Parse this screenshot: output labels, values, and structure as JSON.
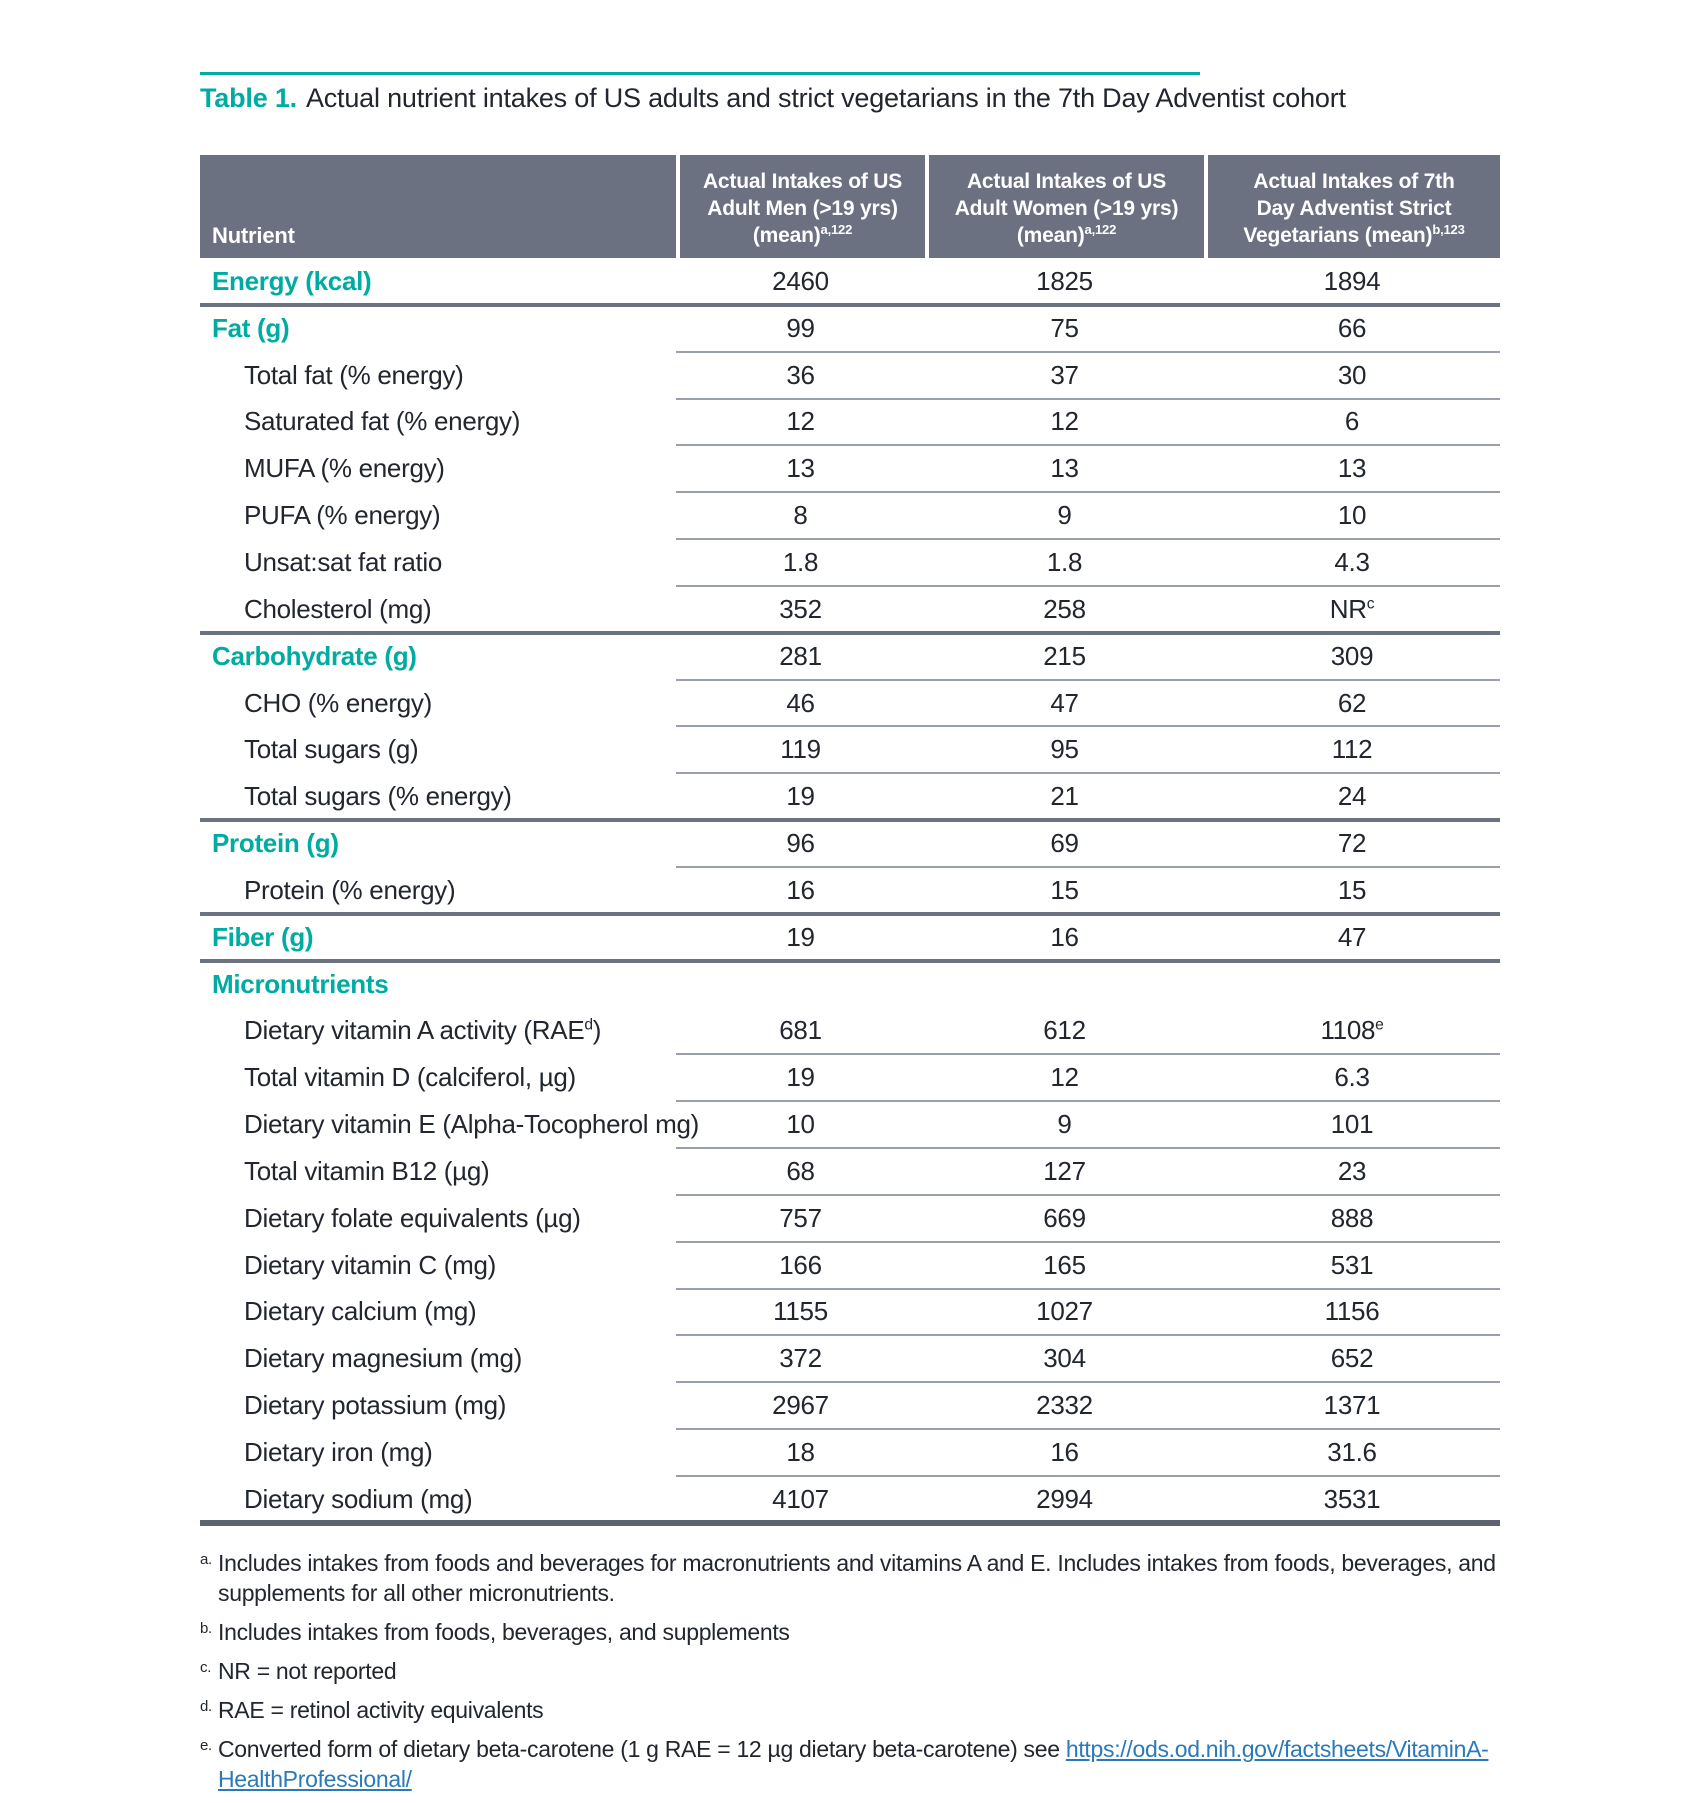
{
  "title": {
    "label": "Table 1.",
    "text": "Actual nutrient intakes of US adults and strict vegetarians in the 7th Day Adventist cohort"
  },
  "colors": {
    "accent_teal": "#00aca2",
    "header_bg": "#6b7180",
    "body_text": "#21262f",
    "link_blue": "#2a7ab9",
    "divider_light": "#99a0ac",
    "divider_dark": "#6b7280"
  },
  "table": {
    "header": [
      {
        "lines": [
          "Nutrient"
        ],
        "sup": ""
      },
      {
        "lines": [
          "Actual Intakes of US",
          "Adult Men (>19 yrs)",
          "(mean)"
        ],
        "sup": "a,122"
      },
      {
        "lines": [
          "Actual Intakes of US",
          "Adult Women (>19 yrs)",
          "(mean)"
        ],
        "sup": "a,122"
      },
      {
        "lines": [
          "Actual Intakes of 7th",
          "Day Adventist Strict",
          "Vegetarians (mean)"
        ],
        "sup": "b,123"
      }
    ],
    "rows": [
      {
        "type": "category",
        "label": "Energy (kcal)",
        "values": [
          {
            "v": "2460"
          },
          {
            "v": "1825"
          },
          {
            "v": "1894"
          }
        ],
        "divider": "full"
      },
      {
        "type": "category",
        "label": "Fat (g)",
        "values": [
          {
            "v": "99"
          },
          {
            "v": "75"
          },
          {
            "v": "66"
          }
        ],
        "divider": "partial"
      },
      {
        "type": "sub",
        "label": "Total fat (% energy)",
        "values": [
          {
            "v": "36"
          },
          {
            "v": "37"
          },
          {
            "v": "30"
          }
        ],
        "divider": "partial"
      },
      {
        "type": "sub",
        "label": "Saturated fat (% energy)",
        "values": [
          {
            "v": "12"
          },
          {
            "v": "12"
          },
          {
            "v": "6"
          }
        ],
        "divider": "partial"
      },
      {
        "type": "sub",
        "label": "MUFA (% energy)",
        "values": [
          {
            "v": "13"
          },
          {
            "v": "13"
          },
          {
            "v": "13"
          }
        ],
        "divider": "partial"
      },
      {
        "type": "sub",
        "label": "PUFA (% energy)",
        "values": [
          {
            "v": "8"
          },
          {
            "v": "9"
          },
          {
            "v": "10"
          }
        ],
        "divider": "partial"
      },
      {
        "type": "sub",
        "label": "Unsat:sat fat ratio",
        "values": [
          {
            "v": "1.8"
          },
          {
            "v": "1.8"
          },
          {
            "v": "4.3"
          }
        ],
        "divider": "partial"
      },
      {
        "type": "sub",
        "label": "Cholesterol (mg)",
        "values": [
          {
            "v": "352"
          },
          {
            "v": "258"
          },
          {
            "v": "NR",
            "sup": "c"
          }
        ],
        "divider": "full"
      },
      {
        "type": "category",
        "label": "Carbohydrate (g)",
        "values": [
          {
            "v": "281"
          },
          {
            "v": "215"
          },
          {
            "v": "309"
          }
        ],
        "divider": "partial"
      },
      {
        "type": "sub",
        "label": "CHO (% energy)",
        "values": [
          {
            "v": "46"
          },
          {
            "v": "47"
          },
          {
            "v": "62"
          }
        ],
        "divider": "partial"
      },
      {
        "type": "sub",
        "label": "Total sugars (g)",
        "values": [
          {
            "v": "119"
          },
          {
            "v": "95"
          },
          {
            "v": "112"
          }
        ],
        "divider": "partial"
      },
      {
        "type": "sub",
        "label": "Total sugars (% energy)",
        "values": [
          {
            "v": "19"
          },
          {
            "v": "21"
          },
          {
            "v": "24"
          }
        ],
        "divider": "full"
      },
      {
        "type": "category",
        "label": "Protein (g)",
        "values": [
          {
            "v": "96"
          },
          {
            "v": "69"
          },
          {
            "v": "72"
          }
        ],
        "divider": "partial"
      },
      {
        "type": "sub",
        "label": "Protein (% energy)",
        "values": [
          {
            "v": "16"
          },
          {
            "v": "15"
          },
          {
            "v": "15"
          }
        ],
        "divider": "full"
      },
      {
        "type": "category",
        "label": "Fiber (g)",
        "values": [
          {
            "v": "19"
          },
          {
            "v": "16"
          },
          {
            "v": "47"
          }
        ],
        "divider": "full"
      },
      {
        "type": "category",
        "label": "Micronutrients",
        "values": [
          {
            "v": ""
          },
          {
            "v": ""
          },
          {
            "v": ""
          }
        ],
        "divider": "none"
      },
      {
        "type": "sub",
        "label": "Dietary vitamin A activity (RAE",
        "label_sup": "d",
        "label_end": ")",
        "values": [
          {
            "v": "681"
          },
          {
            "v": "612"
          },
          {
            "v": "1108",
            "sup": "e"
          }
        ],
        "divider": "partial"
      },
      {
        "type": "sub",
        "label": "Total vitamin D (calciferol, µg)",
        "values": [
          {
            "v": "19"
          },
          {
            "v": "12"
          },
          {
            "v": "6.3"
          }
        ],
        "divider": "partial"
      },
      {
        "type": "sub",
        "label": "Dietary vitamin E (Alpha-Tocopherol mg)",
        "values": [
          {
            "v": "10"
          },
          {
            "v": "9"
          },
          {
            "v": "101"
          }
        ],
        "divider": "partial"
      },
      {
        "type": "sub",
        "label": "Total vitamin B12 (µg)",
        "values": [
          {
            "v": "68"
          },
          {
            "v": "127"
          },
          {
            "v": "23"
          }
        ],
        "divider": "partial"
      },
      {
        "type": "sub",
        "label": "Dietary folate equivalents (µg)",
        "values": [
          {
            "v": "757"
          },
          {
            "v": "669"
          },
          {
            "v": "888"
          }
        ],
        "divider": "partial"
      },
      {
        "type": "sub",
        "label": "Dietary vitamin C (mg)",
        "values": [
          {
            "v": "166"
          },
          {
            "v": "165"
          },
          {
            "v": "531"
          }
        ],
        "divider": "partial"
      },
      {
        "type": "sub",
        "label": "Dietary calcium (mg)",
        "values": [
          {
            "v": "1155"
          },
          {
            "v": "1027"
          },
          {
            "v": "1156"
          }
        ],
        "divider": "partial"
      },
      {
        "type": "sub",
        "label": "Dietary magnesium (mg)",
        "values": [
          {
            "v": "372"
          },
          {
            "v": "304"
          },
          {
            "v": "652"
          }
        ],
        "divider": "partial"
      },
      {
        "type": "sub",
        "label": "Dietary potassium (mg)",
        "values": [
          {
            "v": "2967"
          },
          {
            "v": "2332"
          },
          {
            "v": "1371"
          }
        ],
        "divider": "partial"
      },
      {
        "type": "sub",
        "label": "Dietary iron (mg)",
        "values": [
          {
            "v": "18"
          },
          {
            "v": "16"
          },
          {
            "v": "31.6"
          }
        ],
        "divider": "partial"
      },
      {
        "type": "sub",
        "label": "Dietary sodium (mg)",
        "values": [
          {
            "v": "4107"
          },
          {
            "v": "2994"
          },
          {
            "v": "3531"
          }
        ],
        "divider": "bottom"
      }
    ]
  },
  "footnotes": [
    {
      "marker": "a.",
      "text": "Includes intakes from foods and beverages for macronutrients and vitamins A and E. Includes intakes from foods, beverages, and supplements for all other micronutrients."
    },
    {
      "marker": "b.",
      "text": "Includes intakes from foods, beverages, and supplements"
    },
    {
      "marker": "c.",
      "text": "NR = not reported"
    },
    {
      "marker": "d.",
      "text": "RAE = retinol activity equivalents"
    },
    {
      "marker": "e.",
      "text": "Converted form of dietary beta-carotene (1 g RAE = 12 µg dietary beta-carotene) see ",
      "link": "https://ods.od.nih.gov/factsheets/VitaminA-HealthProfessional/"
    }
  ]
}
